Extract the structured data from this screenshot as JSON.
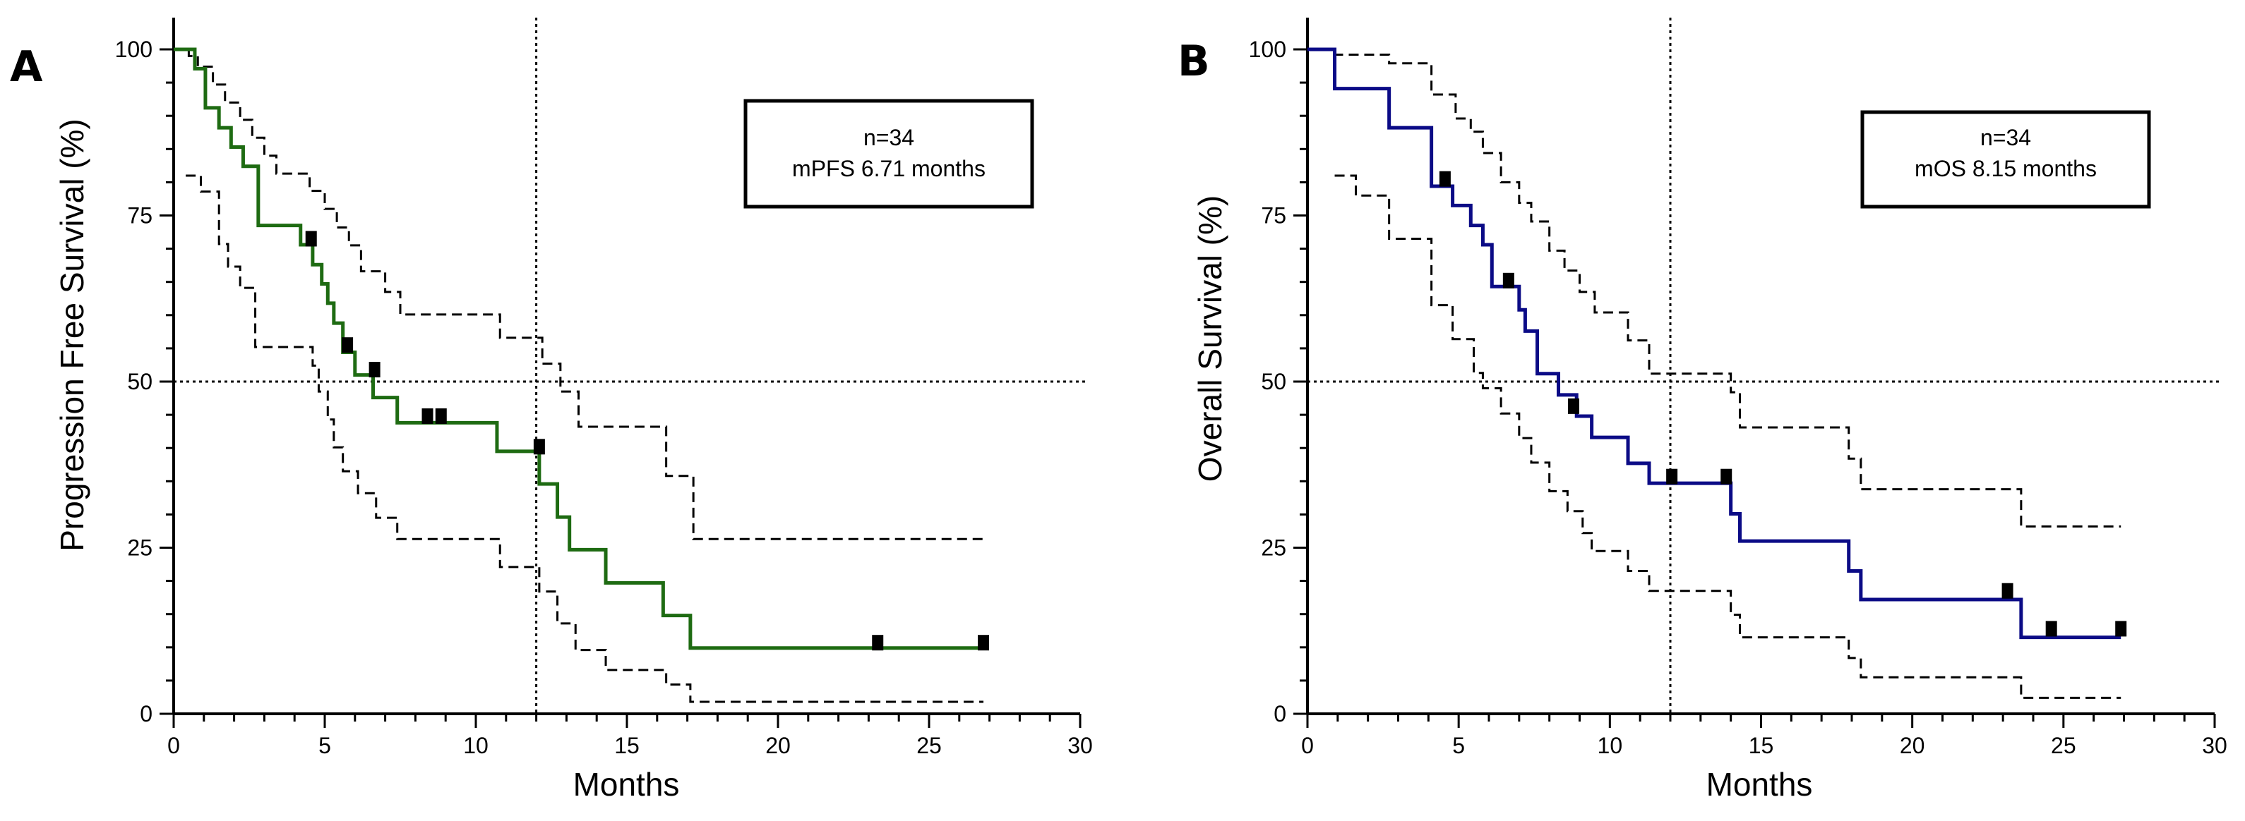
{
  "chart_data": [
    {
      "type": "line",
      "subtype": "kaplan-meier",
      "panel_label": "A",
      "title": "",
      "xlabel": "Months",
      "ylabel": "Progression Free Survival (%)",
      "xlim": [
        0,
        30
      ],
      "ylim": [
        0,
        100
      ],
      "xticks": [
        0,
        5,
        10,
        15,
        20,
        25,
        30
      ],
      "yticks": [
        0,
        25,
        50,
        75,
        100
      ],
      "reference_lines": {
        "x": 12,
        "y": 50
      },
      "annotation": {
        "line1": "n=34",
        "line2": "mPFS 6.71 months",
        "placement": "top-right"
      },
      "series": [
        {
          "name": "Survival estimate",
          "color": "#1e6b12",
          "style": "solid",
          "x": [
            0,
            0.7,
            1.05,
            1.5,
            1.9,
            2.3,
            2.8,
            4.2,
            4.6,
            4.9,
            5.1,
            5.3,
            5.6,
            6.0,
            6.6,
            7.4,
            10.7,
            12.1,
            12.7,
            13.1,
            14.3,
            16.2,
            17.1,
            26.8
          ],
          "y": [
            100,
            97.1,
            91.2,
            88.2,
            85.3,
            82.4,
            73.5,
            70.6,
            67.6,
            64.7,
            61.8,
            58.8,
            54.4,
            51.0,
            47.6,
            43.8,
            39.5,
            34.6,
            29.6,
            24.7,
            19.7,
            14.8,
            9.9,
            9.9
          ]
        },
        {
          "name": "Upper 95% CI",
          "color": "#000000",
          "style": "dashed",
          "x": [
            0,
            0.5,
            0.8,
            1.3,
            1.7,
            2.2,
            2.6,
            3.0,
            3.4,
            4.5,
            5.0,
            5.4,
            5.8,
            6.2,
            7.0,
            7.5,
            10.8,
            12.2,
            12.8,
            13.4,
            16.3,
            17.2,
            26.8
          ],
          "y": [
            100,
            99,
            97.4,
            94.7,
            92,
            89.4,
            86.7,
            84,
            81.3,
            78.7,
            76,
            73.2,
            70.5,
            66.6,
            63.5,
            60.1,
            56.6,
            52.7,
            48.5,
            43.2,
            35.8,
            26.3,
            26.3
          ]
        },
        {
          "name": "Lower 95% CI",
          "color": "#000000",
          "style": "dashed",
          "x": [
            0.4,
            0.9,
            1.5,
            1.8,
            2.2,
            2.7,
            4.6,
            4.8,
            5.1,
            5.3,
            5.6,
            6.1,
            6.7,
            7.4,
            10.8,
            12.1,
            12.7,
            13.3,
            14.3,
            16.3,
            17.1,
            26.8
          ],
          "y": [
            81,
            78.6,
            70.7,
            67.3,
            64.1,
            55.2,
            52.4,
            48.5,
            44.3,
            40.1,
            36.5,
            33.2,
            29.5,
            26.3,
            22.1,
            18.4,
            13.6,
            9.6,
            6.6,
            4.4,
            1.8,
            1.8
          ]
        }
      ],
      "censor_marks": [
        {
          "x": 4.55,
          "y": 71.5
        },
        {
          "x": 5.75,
          "y": 55.5
        },
        {
          "x": 6.65,
          "y": 51.8
        },
        {
          "x": 8.4,
          "y": 44.8
        },
        {
          "x": 8.85,
          "y": 44.8
        },
        {
          "x": 12.1,
          "y": 40.2
        },
        {
          "x": 23.3,
          "y": 10.7
        },
        {
          "x": 26.8,
          "y": 10.7
        }
      ]
    },
    {
      "type": "line",
      "subtype": "kaplan-meier",
      "panel_label": "B",
      "title": "",
      "xlabel": "Months",
      "ylabel": "Overall Survival (%)",
      "xlim": [
        0,
        30
      ],
      "ylim": [
        0,
        100
      ],
      "xticks": [
        0,
        5,
        10,
        15,
        20,
        25,
        30
      ],
      "yticks": [
        0,
        25,
        50,
        75,
        100
      ],
      "reference_lines": {
        "x": 12,
        "y": 50
      },
      "annotation": {
        "line1": "n=34",
        "line2": "mOS 8.15 months",
        "placement": "top-right"
      },
      "series": [
        {
          "name": "Survival estimate",
          "color": "#0b0b86",
          "style": "solid",
          "x": [
            0,
            0.9,
            1.6,
            2.7,
            4.1,
            4.8,
            5.4,
            5.8,
            6.1,
            7.0,
            7.2,
            7.6,
            8.3,
            8.9,
            9.4,
            10.6,
            11.3,
            14.0,
            14.3,
            17.9,
            18.3,
            23.6,
            26.9
          ],
          "y": [
            100,
            94.1,
            94.1,
            88.2,
            79.4,
            76.5,
            73.5,
            70.6,
            64.3,
            60.8,
            57.6,
            51.2,
            48.0,
            44.8,
            41.6,
            37.7,
            34.7,
            30.1,
            26.0,
            21.5,
            17.2,
            11.5,
            11.5
          ]
        },
        {
          "name": "Upper 95% CI",
          "color": "#000000",
          "style": "dashed",
          "x": [
            0,
            0.9,
            1.6,
            2.7,
            4.1,
            4.9,
            5.4,
            5.8,
            6.4,
            7.0,
            7.4,
            8.0,
            8.5,
            9.0,
            9.5,
            10.6,
            11.3,
            14.0,
            14.3,
            17.9,
            18.3,
            23.6,
            26.9
          ],
          "y": [
            100,
            99.2,
            99.2,
            97.9,
            93.2,
            89.6,
            87.6,
            84.4,
            80,
            76.9,
            74.1,
            69.7,
            66.7,
            63.5,
            60.4,
            56.2,
            51.2,
            48.4,
            43.1,
            38.4,
            33.8,
            28.2,
            28.2
          ]
        },
        {
          "name": "Lower 95% CI",
          "color": "#000000",
          "style": "dashed",
          "x": [
            0.9,
            1.6,
            2.7,
            4.1,
            4.8,
            5.5,
            5.8,
            6.4,
            7.0,
            7.4,
            8.0,
            8.6,
            9.1,
            9.4,
            10.6,
            11.3,
            14.0,
            14.3,
            17.9,
            18.3,
            23.6,
            26.9
          ],
          "y": [
            81,
            78,
            71.5,
            61.5,
            56.4,
            51.3,
            49,
            45.2,
            41.5,
            37.8,
            33.5,
            30.5,
            27.2,
            24.5,
            21.5,
            18.5,
            14.9,
            11.5,
            8.4,
            5.5,
            2.4,
            2.4
          ]
        }
      ],
      "censor_marks": [
        {
          "x": 4.55,
          "y": 80.5
        },
        {
          "x": 6.65,
          "y": 65.2
        },
        {
          "x": 8.8,
          "y": 46.3
        },
        {
          "x": 12.05,
          "y": 35.7
        },
        {
          "x": 13.85,
          "y": 35.7
        },
        {
          "x": 23.15,
          "y": 18.5
        },
        {
          "x": 24.6,
          "y": 12.8
        },
        {
          "x": 26.9,
          "y": 12.8
        }
      ]
    }
  ]
}
